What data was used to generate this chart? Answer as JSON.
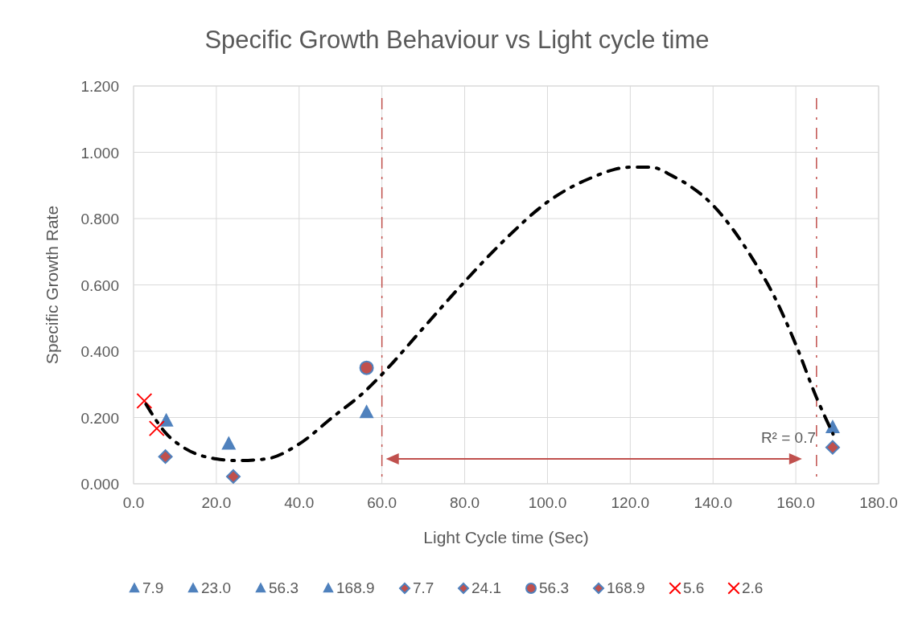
{
  "chart_data": {
    "type": "scatter",
    "title": "Specific Growth Behaviour vs Light cycle time",
    "xlabel": "Light Cycle time (Sec)",
    "ylabel": "Specific Growth Rate",
    "xlim": [
      0,
      180
    ],
    "xticks": [
      {
        "value": 0,
        "label": "0.0"
      },
      {
        "value": 20,
        "label": "20.0"
      },
      {
        "value": 40,
        "label": "40.0"
      },
      {
        "value": 60,
        "label": "60.0"
      },
      {
        "value": 80,
        "label": "80.0"
      },
      {
        "value": 100,
        "label": "100.0"
      },
      {
        "value": 120,
        "label": "120.0"
      },
      {
        "value": 140,
        "label": "140.0"
      },
      {
        "value": 160,
        "label": "160.0"
      },
      {
        "value": 180,
        "label": "180.0"
      }
    ],
    "ylim": [
      0,
      1.2
    ],
    "yticks": [
      {
        "value": 0,
        "label": "0.000"
      },
      {
        "value": 0.2,
        "label": "0.200"
      },
      {
        "value": 0.4,
        "label": "0.400"
      },
      {
        "value": 0.6,
        "label": "0.600"
      },
      {
        "value": 0.8,
        "label": "0.800"
      },
      {
        "value": 1.0,
        "label": "1.000"
      },
      {
        "value": 1.2,
        "label": "1.200"
      }
    ],
    "grid": true,
    "legend": "bottom",
    "series": [
      {
        "name": "7.9",
        "color": "#4f81bd",
        "marker": "triangle",
        "x": [
          7.9
        ],
        "values": [
          0.19
        ]
      },
      {
        "name": "23.0",
        "color": "#4f81bd",
        "marker": "triangle",
        "x": [
          23.0
        ],
        "values": [
          0.12
        ]
      },
      {
        "name": "56.3",
        "color": "#4f81bd",
        "marker": "triangle",
        "x": [
          56.3
        ],
        "values": [
          0.215
        ]
      },
      {
        "name": "168.9",
        "color": "#4f81bd",
        "marker": "triangle",
        "x": [
          168.9
        ],
        "values": [
          0.17
        ]
      },
      {
        "name": "7.7",
        "color": "#c0504d",
        "marker": "diamond",
        "x": [
          7.7
        ],
        "values": [
          0.082
        ]
      },
      {
        "name": "24.1",
        "color": "#c0504d",
        "marker": "diamond",
        "x": [
          24.1
        ],
        "values": [
          0.022
        ]
      },
      {
        "name": "56.3",
        "color": "#c0504d",
        "marker": "circle",
        "x": [
          56.3
        ],
        "values": [
          0.35
        ]
      },
      {
        "name": "168.9",
        "color": "#c0504d",
        "marker": "diamond",
        "x": [
          168.9
        ],
        "values": [
          0.11
        ]
      },
      {
        "name": "5.6",
        "color": "#ff0000",
        "marker": "cross",
        "x": [
          5.6
        ],
        "values": [
          0.167
        ]
      },
      {
        "name": "2.6",
        "color": "#ff0000",
        "marker": "cross",
        "x": [
          2.6
        ],
        "values": [
          0.25
        ]
      },
      {
        "type": "line",
        "color": "#000000",
        "line_style": "dashdot",
        "x": [
          3,
          8,
          12,
          20,
          25,
          32,
          40,
          48,
          56,
          60,
          70,
          80,
          90,
          100,
          110,
          120,
          125,
          130,
          140,
          150,
          155,
          160,
          165,
          169
        ],
        "values": [
          0.24,
          0.15,
          0.11,
          0.075,
          0.07,
          0.075,
          0.12,
          0.2,
          0.28,
          0.33,
          0.47,
          0.61,
          0.74,
          0.85,
          0.92,
          0.955,
          0.955,
          0.93,
          0.84,
          0.67,
          0.56,
          0.42,
          0.26,
          0.15
        ]
      }
    ],
    "ref_lines": [
      {
        "axis": "x",
        "value": 60,
        "color": "#c0504d",
        "line_style": "dashdot"
      },
      {
        "axis": "x",
        "value": 165,
        "color": "#c0504d",
        "line_style": "dashdot"
      }
    ],
    "annotations": [
      "R² = 0.7"
    ]
  }
}
